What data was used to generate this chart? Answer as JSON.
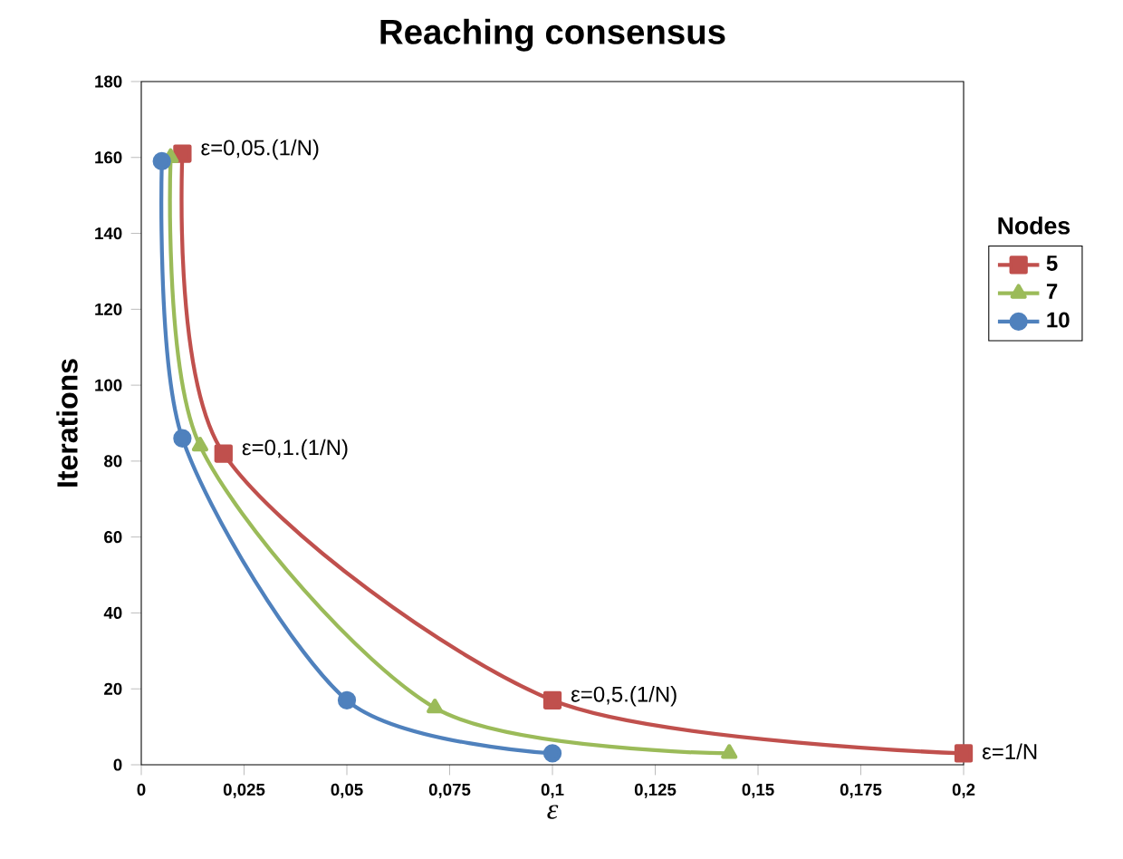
{
  "chart_data": {
    "type": "line",
    "title": "Reaching consensus",
    "xlabel": "ε",
    "ylabel": "Iterations",
    "legend_title": "Nodes",
    "series": [
      {
        "name": "5",
        "color": "#c0504d",
        "marker": "square",
        "x": [
          0.01,
          0.02,
          0.1,
          0.2
        ],
        "values": [
          161,
          82,
          17,
          3
        ]
      },
      {
        "name": "7",
        "color": "#9bbb59",
        "marker": "triangle",
        "x": [
          0.00714,
          0.0143,
          0.0714,
          0.143
        ],
        "values": [
          160,
          84,
          15,
          3
        ]
      },
      {
        "name": "10",
        "color": "#4f81bd",
        "marker": "circle",
        "x": [
          0.005,
          0.01,
          0.05,
          0.1
        ],
        "values": [
          159,
          86,
          17,
          3
        ]
      }
    ],
    "xlim": [
      0,
      0.2
    ],
    "xticks": [
      0,
      {
        "value": 0.025,
        "label": "0,025"
      },
      {
        "value": 0.05,
        "label": "0,05"
      },
      {
        "value": 0.075,
        "label": "0,075"
      },
      {
        "value": 0.1,
        "label": "0,1"
      },
      {
        "value": 0.125,
        "label": "0,125"
      },
      {
        "value": 0.15,
        "label": "0,15"
      },
      {
        "value": 0.175,
        "label": "0,175"
      },
      {
        "value": 0.2,
        "label": "0,2"
      }
    ],
    "ylim": [
      0,
      180
    ],
    "yticks": [
      0,
      20,
      40,
      60,
      80,
      100,
      120,
      140,
      160,
      180
    ],
    "grid": false,
    "legend": "right",
    "annotations": [
      {
        "text": "ε=0,05.(1/N)",
        "x": 0.01,
        "y": 161
      },
      {
        "text": "ε=0,1.(1/N)",
        "x": 0.02,
        "y": 82
      },
      {
        "text": "ε=0,5.(1/N)",
        "x": 0.1,
        "y": 17
      },
      {
        "text": "ε=1/N",
        "x": 0.2,
        "y": 3
      }
    ]
  }
}
